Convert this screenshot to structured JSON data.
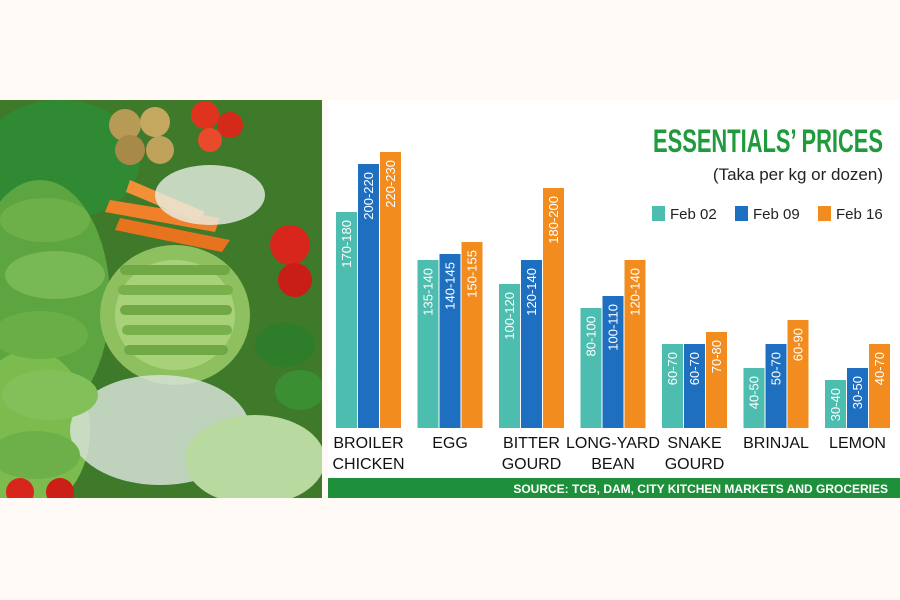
{
  "chart_data": {
    "type": "bar",
    "title": "ESSENTIALS’ PRICES",
    "subtitle": "(Taka per kg or dozen)",
    "source": "SOURCE: TCB, DAM, CITY KITCHEN MARKETS AND GROCERIES",
    "legend_position": "top-right",
    "grid": false,
    "categories": [
      [
        "BROILER",
        "CHICKEN"
      ],
      [
        "EGG"
      ],
      [
        "BITTER",
        "GOURD"
      ],
      [
        "LONG-YARD",
        "BEAN"
      ],
      [
        "SNAKE",
        "GOURD"
      ],
      [
        "BRINJAL"
      ],
      [
        "LEMON"
      ]
    ],
    "ylim": [
      0,
      240
    ],
    "series": [
      {
        "name": "Feb 02",
        "color": "#4dbdb0",
        "labels": [
          "170-180",
          "135-140",
          "100-120",
          "80-100",
          "60-70",
          "40-50",
          "30-40"
        ],
        "values": [
          180,
          140,
          120,
          100,
          70,
          50,
          40
        ]
      },
      {
        "name": "Feb 09",
        "color": "#1f6fc1",
        "labels": [
          "200-220",
          "140-145",
          "120-140",
          "100-110",
          "60-70",
          "50-70",
          "30-50"
        ],
        "values": [
          220,
          145,
          140,
          110,
          70,
          70,
          50
        ]
      },
      {
        "name": "Feb 16",
        "color": "#f28c1f",
        "labels": [
          "220-230",
          "150-155",
          "180-200",
          "120-140",
          "70-80",
          "60-90",
          "40-70"
        ],
        "values": [
          230,
          155,
          200,
          140,
          80,
          90,
          70
        ]
      }
    ]
  },
  "colors": {
    "title_green": "#1f9a3c",
    "source_bar": "#1e8f3a",
    "panel_bg": "#fffaf5"
  }
}
